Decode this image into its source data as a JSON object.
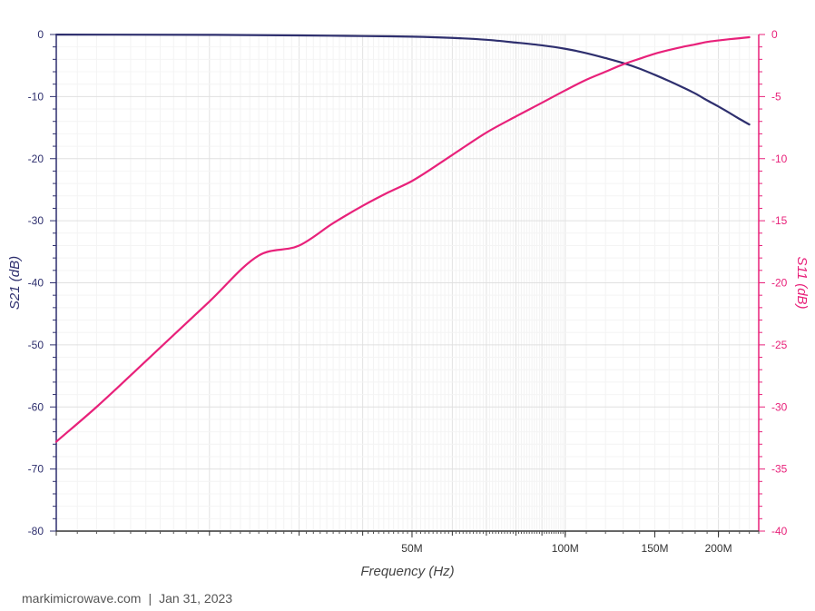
{
  "footer": {
    "site": "markimicrowave.com",
    "separator": "|",
    "date": "Jan 31, 2023"
  },
  "chart_data": {
    "type": "line",
    "xlabel": "Frequency (Hz)",
    "x_scale": "log",
    "xlim": [
      10000000,
      240000000
    ],
    "x_tick_labels": [
      {
        "value": 50000000,
        "label": "50M"
      },
      {
        "value": 100000000,
        "label": "100M"
      },
      {
        "value": 150000000,
        "label": "150M"
      },
      {
        "value": 200000000,
        "label": "200M"
      }
    ],
    "left_axis": {
      "label": "S21 (dB)",
      "ylim": [
        -80,
        0
      ],
      "ticks": [
        0,
        -10,
        -20,
        -30,
        -40,
        -50,
        -60,
        -70,
        -80
      ],
      "tick_labels": [
        "0",
        "-10",
        "-20",
        "-30",
        "-40",
        "-50",
        "-60",
        "-70",
        "-80"
      ],
      "color": "#2e2f6e"
    },
    "right_axis": {
      "label": "S11 (dB)",
      "ylim": [
        -40,
        0
      ],
      "ticks": [
        0,
        -5,
        -10,
        -15,
        -20,
        -25,
        -30,
        -35,
        -40
      ],
      "tick_labels": [
        "0",
        "-5",
        "-10",
        "-15",
        "-20",
        "-25",
        "-30",
        "-35",
        "-40"
      ],
      "color": "#e8217a"
    },
    "grid": true,
    "series": [
      {
        "axis": "left",
        "color": "#2e2f6e",
        "points": [
          [
            10000000,
            -0.02
          ],
          [
            20000000,
            -0.05
          ],
          [
            30000000,
            -0.15
          ],
          [
            40000000,
            -0.25
          ],
          [
            50000000,
            -0.35
          ],
          [
            60000000,
            -0.55
          ],
          [
            70000000,
            -0.85
          ],
          [
            80000000,
            -1.3
          ],
          [
            90000000,
            -1.75
          ],
          [
            100000000,
            -2.3
          ],
          [
            110000000,
            -3.0
          ],
          [
            120000000,
            -3.8
          ],
          [
            130000000,
            -4.6
          ],
          [
            140000000,
            -5.5
          ],
          [
            150000000,
            -6.5
          ],
          [
            160000000,
            -7.5
          ],
          [
            170000000,
            -8.5
          ],
          [
            180000000,
            -9.5
          ],
          [
            190000000,
            -10.6
          ],
          [
            200000000,
            -11.6
          ],
          [
            210000000,
            -12.6
          ],
          [
            220000000,
            -13.6
          ],
          [
            230000000,
            -14.5
          ]
        ]
      },
      {
        "axis": "right",
        "color": "#e8217a",
        "points": [
          [
            10000000,
            -32.8
          ],
          [
            12000000,
            -30.0
          ],
          [
            15000000,
            -26.3
          ],
          [
            20000000,
            -21.5
          ],
          [
            25000000,
            -17.8
          ],
          [
            30000000,
            -17.0
          ],
          [
            35000000,
            -15.2
          ],
          [
            40000000,
            -13.8
          ],
          [
            45000000,
            -12.7
          ],
          [
            50000000,
            -11.8
          ],
          [
            60000000,
            -9.7
          ],
          [
            70000000,
            -7.9
          ],
          [
            80000000,
            -6.6
          ],
          [
            90000000,
            -5.5
          ],
          [
            100000000,
            -4.5
          ],
          [
            110000000,
            -3.65
          ],
          [
            120000000,
            -3.0
          ],
          [
            130000000,
            -2.4
          ],
          [
            140000000,
            -1.95
          ],
          [
            150000000,
            -1.55
          ],
          [
            160000000,
            -1.25
          ],
          [
            170000000,
            -1.0
          ],
          [
            180000000,
            -0.8
          ],
          [
            190000000,
            -0.6
          ],
          [
            200000000,
            -0.48
          ],
          [
            210000000,
            -0.38
          ],
          [
            220000000,
            -0.3
          ],
          [
            230000000,
            -0.22
          ]
        ]
      }
    ]
  }
}
